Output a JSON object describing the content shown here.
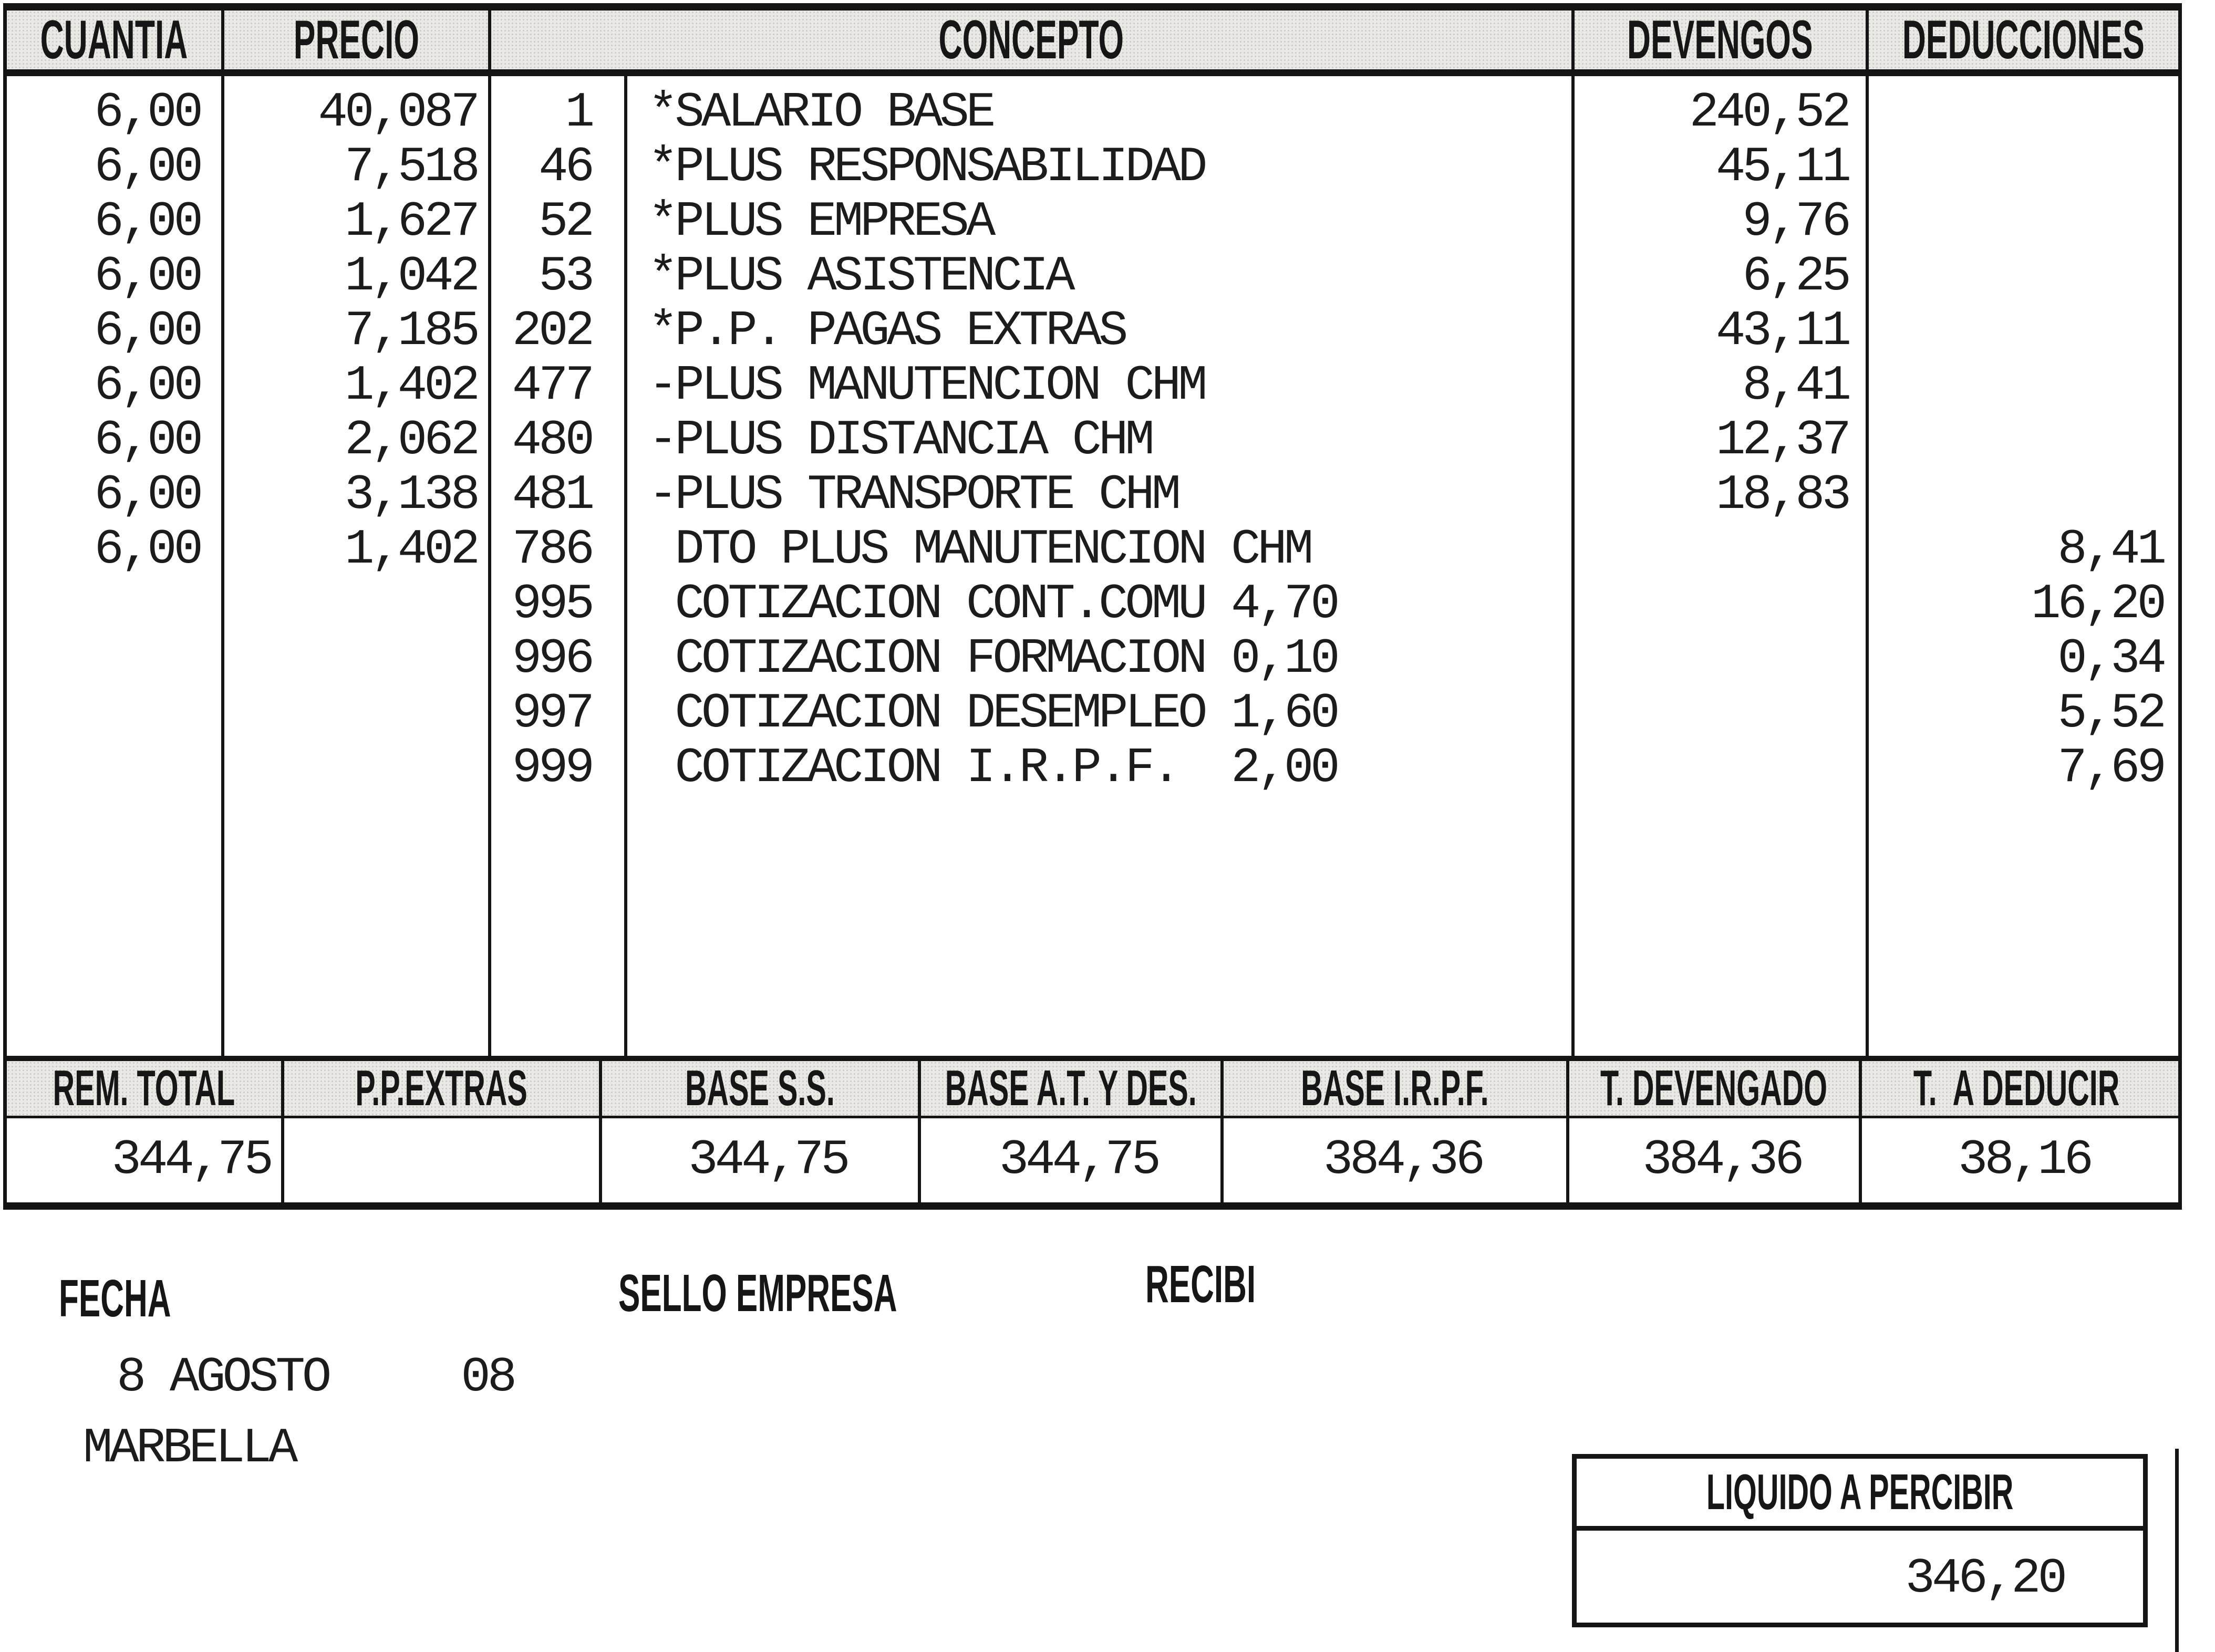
{
  "colors": {
    "ink": "#1b1b1b",
    "header_band": "#e9e8e4"
  },
  "table": {
    "headers": {
      "cuantia": "CUANTIA",
      "precio": "PRECIO",
      "concepto": "CONCEPTO",
      "devengos": "DEVENGOS",
      "deducciones": "DEDUCCIONES"
    },
    "rows": [
      {
        "cuantia": "6,00",
        "precio": "40,087",
        "code": "1",
        "concepto": "*SALARIO BASE",
        "devengos": "240,52",
        "deducciones": ""
      },
      {
        "cuantia": "6,00",
        "precio": "7,518",
        "code": "46",
        "concepto": "*PLUS RESPONSABILIDAD",
        "devengos": "45,11",
        "deducciones": ""
      },
      {
        "cuantia": "6,00",
        "precio": "1,627",
        "code": "52",
        "concepto": "*PLUS EMPRESA",
        "devengos": "9,76",
        "deducciones": ""
      },
      {
        "cuantia": "6,00",
        "precio": "1,042",
        "code": "53",
        "concepto": "*PLUS ASISTENCIA",
        "devengos": "6,25",
        "deducciones": ""
      },
      {
        "cuantia": "6,00",
        "precio": "7,185",
        "code": "202",
        "concepto": "*P.P. PAGAS EXTRAS",
        "devengos": "43,11",
        "deducciones": ""
      },
      {
        "cuantia": "6,00",
        "precio": "1,402",
        "code": "477",
        "concepto": "-PLUS MANUTENCION CHM",
        "devengos": "8,41",
        "deducciones": ""
      },
      {
        "cuantia": "6,00",
        "precio": "2,062",
        "code": "480",
        "concepto": "-PLUS DISTANCIA CHM",
        "devengos": "12,37",
        "deducciones": ""
      },
      {
        "cuantia": "6,00",
        "precio": "3,138",
        "code": "481",
        "concepto": "-PLUS TRANSPORTE CHM",
        "devengos": "18,83",
        "deducciones": ""
      },
      {
        "cuantia": "6,00",
        "precio": "1,402",
        "code": "786",
        "concepto": " DTO PLUS MANUTENCION CHM",
        "devengos": "",
        "deducciones": "8,41"
      },
      {
        "cuantia": "",
        "precio": "",
        "code": "995",
        "concepto": " COTIZACION CONT.COMU 4,70",
        "devengos": "",
        "deducciones": "16,20"
      },
      {
        "cuantia": "",
        "precio": "",
        "code": "996",
        "concepto": " COTIZACION FORMACION 0,10",
        "devengos": "",
        "deducciones": "0,34"
      },
      {
        "cuantia": "",
        "precio": "",
        "code": "997",
        "concepto": " COTIZACION DESEMPLEO 1,60",
        "devengos": "",
        "deducciones": "5,52"
      },
      {
        "cuantia": "",
        "precio": "",
        "code": "999",
        "concepto": " COTIZACION I.R.P.F.  2,00",
        "devengos": "",
        "deducciones": "7,69"
      }
    ]
  },
  "totals": {
    "headers": [
      "REM. TOTAL",
      "P.P.EXTRAS",
      "BASE S.S.",
      "BASE A.T. Y DES.",
      "BASE I.R.P.F.",
      "T. DEVENGADO",
      "T.  A DEDUCIR"
    ],
    "values": [
      "344,75",
      "",
      "344,75",
      "344,75",
      "384,36",
      "384,36",
      "38,16"
    ]
  },
  "footer": {
    "fecha_label": "FECHA",
    "sello_label": "SELLO EMPRESA",
    "recibi_label": "RECIBI",
    "date_line": "8 AGOSTO     08",
    "city": "MARBELLA",
    "liquido_label": "LIQUIDO A PERCIBIR",
    "liquido_value": "346,20"
  }
}
